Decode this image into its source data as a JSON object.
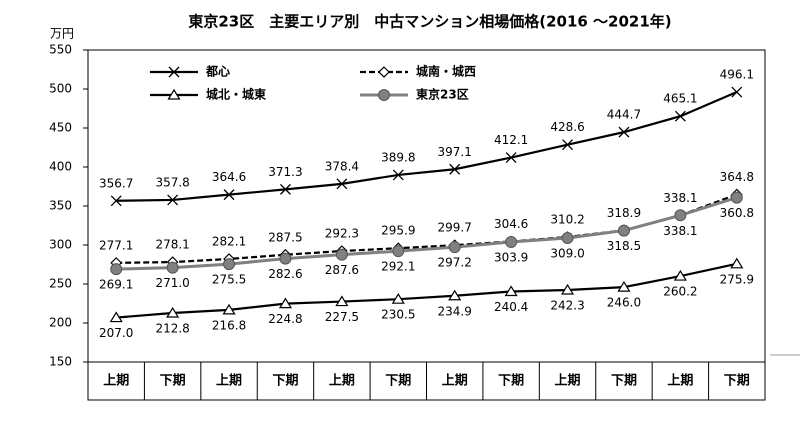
{
  "chart_data": {
    "type": "line",
    "title": "東京23区　主要エリア別　中古マンション相場価格(2016 ～2021年)",
    "y_label": "万円",
    "categories": [
      "上期",
      "下期",
      "上期",
      "下期",
      "上期",
      "下期",
      "上期",
      "下期",
      "上期",
      "下期",
      "上期",
      "下期"
    ],
    "ylim": [
      150,
      550
    ],
    "yticks": [
      150,
      200,
      250,
      300,
      350,
      400,
      450,
      500,
      550
    ],
    "grid": false,
    "legend": "upper left",
    "series": [
      {
        "name": "都心",
        "color": "#000000",
        "marker": "x",
        "dash": false,
        "values": [
          356.7,
          357.8,
          364.6,
          371.3,
          378.4,
          389.8,
          397.1,
          412.1,
          428.6,
          444.7,
          465.1,
          496.1
        ],
        "value_labels": [
          "356.7",
          "357.8",
          "364.6",
          "371.3",
          "378.4",
          "389.8",
          "397.1",
          "412.1",
          "428.6",
          "444.7",
          "465.1",
          "496.1"
        ]
      },
      {
        "name": "城南・城西",
        "color": "#000000",
        "marker": "diamond",
        "dash": true,
        "values": [
          277.1,
          278.1,
          282.1,
          287.5,
          292.3,
          295.9,
          299.7,
          304.6,
          310.2,
          318.9,
          338.1,
          364.8
        ],
        "value_labels": [
          "277.1",
          "278.1",
          "282.1",
          "287.5",
          "292.3",
          "295.9",
          "299.7",
          "304.6",
          "310.2",
          "318.9",
          "338.1",
          "364.8"
        ]
      },
      {
        "name": "城北・城東",
        "color": "#000000",
        "marker": "triangle",
        "dash": false,
        "values": [
          207.0,
          212.8,
          216.8,
          224.8,
          227.5,
          230.5,
          234.9,
          240.4,
          242.3,
          246.0,
          260.2,
          275.9
        ],
        "value_labels": [
          "207.0",
          "212.8",
          "216.8",
          "224.8",
          "227.5",
          "230.5",
          "234.9",
          "240.4",
          "242.3",
          "246.0",
          "260.2",
          "275.9"
        ]
      },
      {
        "name": "東京23区",
        "color": "#808080",
        "marker": "circle",
        "dash": false,
        "values": [
          269.1,
          271.0,
          275.5,
          282.6,
          287.6,
          292.1,
          297.2,
          303.9,
          309.0,
          318.5,
          338.1,
          360.8
        ],
        "value_labels": [
          "269.1",
          "271.0",
          "275.5",
          "282.6",
          "287.6",
          "292.1",
          "297.2",
          "303.9",
          "309.0",
          "318.5",
          "338.1",
          "360.8"
        ]
      }
    ]
  }
}
